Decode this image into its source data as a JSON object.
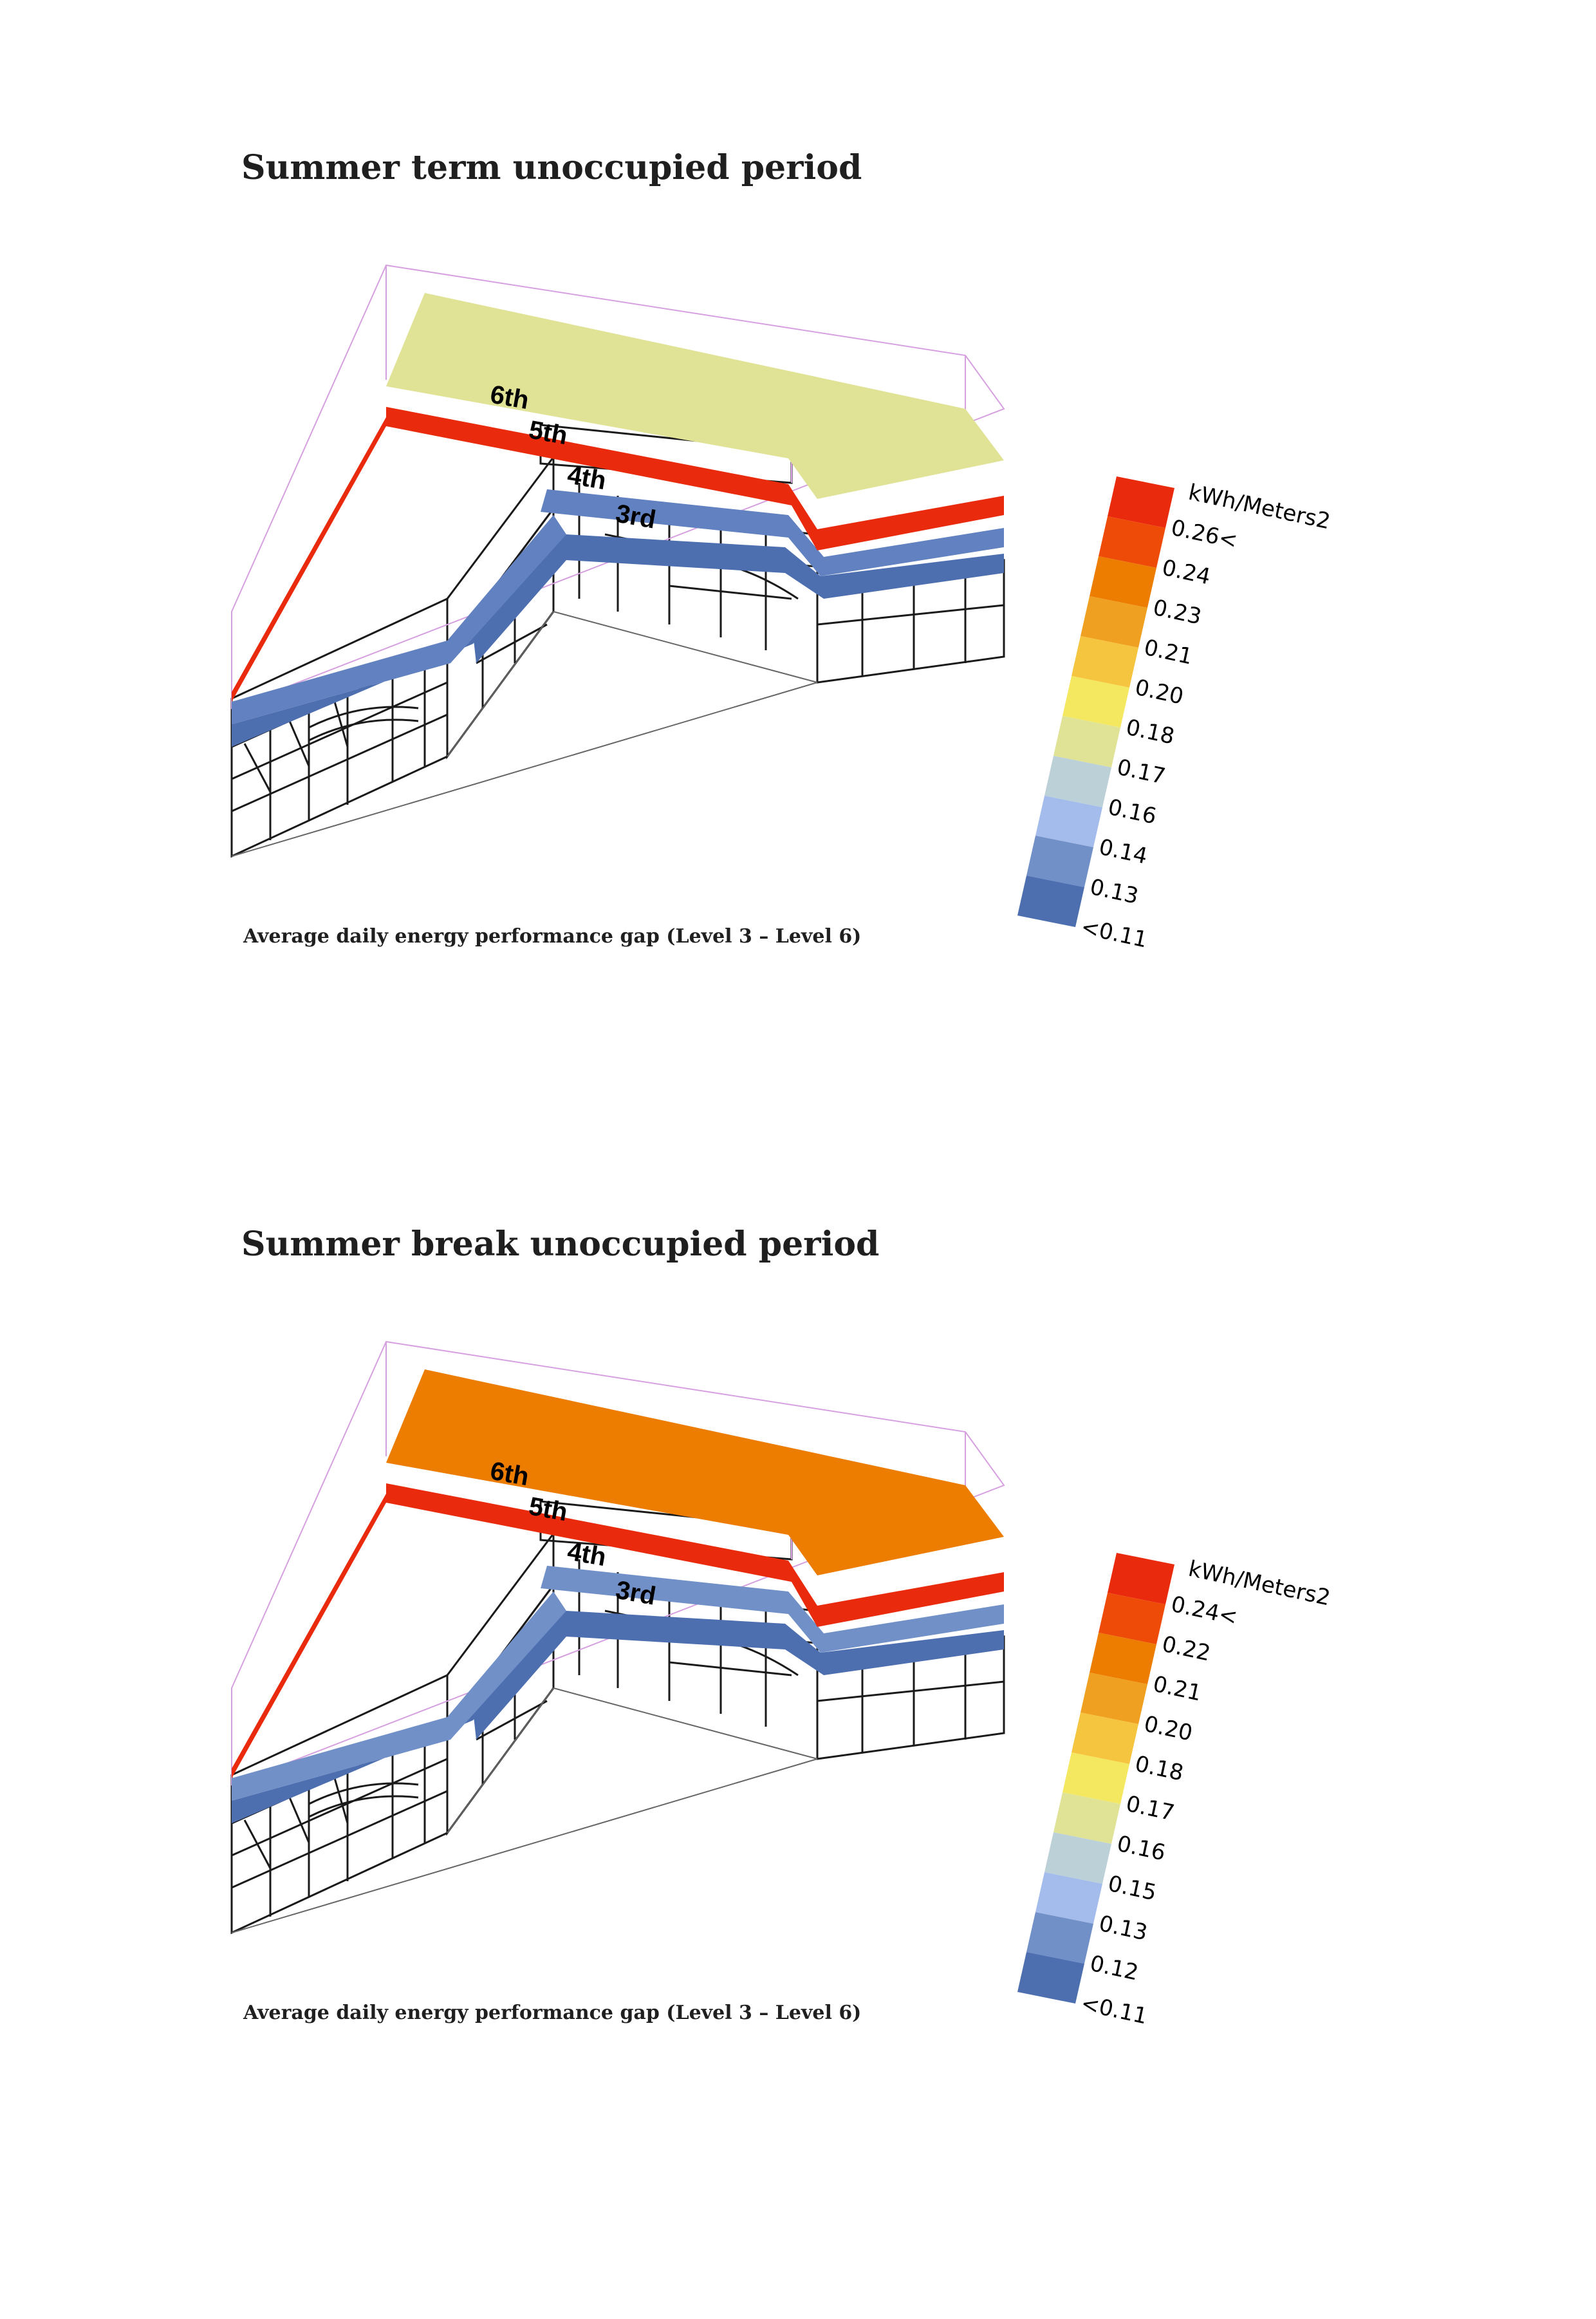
{
  "panels": [
    {
      "title": "Summer term unoccupied period",
      "caption": "Average daily energy performance gap (Level 3 – Level 6)",
      "floors": [
        {
          "label": "6th",
          "color": "#e0e396"
        },
        {
          "label": "5th",
          "color": "#ea2a0c"
        },
        {
          "label": "4th",
          "color": "#6281c0"
        },
        {
          "label": "3rd",
          "color": "#4d6fb0"
        }
      ],
      "legend": {
        "unit": "kWh/Meters2",
        "labels": [
          "0.26<",
          "0.24",
          "0.23",
          "0.21",
          "0.20",
          "0.18",
          "0.17",
          "0.16",
          "0.14",
          "0.13",
          "<0.11"
        ]
      }
    },
    {
      "title": "Summer break unoccupied period",
      "caption": "Average daily energy performance gap (Level 3 – Level 6)",
      "floors": [
        {
          "label": "6th",
          "color": "#ec7d00"
        },
        {
          "label": "5th",
          "color": "#ea2a0c"
        },
        {
          "label": "4th",
          "color": "#7190c8"
        },
        {
          "label": "3rd",
          "color": "#4d6fb0"
        }
      ],
      "legend": {
        "unit": "kWh/Meters2",
        "labels": [
          "0.24<",
          "0.22",
          "0.21",
          "0.20",
          "0.18",
          "0.17",
          "0.16",
          "0.15",
          "0.13",
          "0.12",
          "<0.11"
        ]
      }
    }
  ],
  "legend_colors": [
    "#ea2a0c",
    "#ee4a08",
    "#ec7d00",
    "#f0a020",
    "#f5c540",
    "#f4e860",
    "#e0e396",
    "#bcd0d8",
    "#a3bcec",
    "#7190c8",
    "#4d6fb0"
  ]
}
